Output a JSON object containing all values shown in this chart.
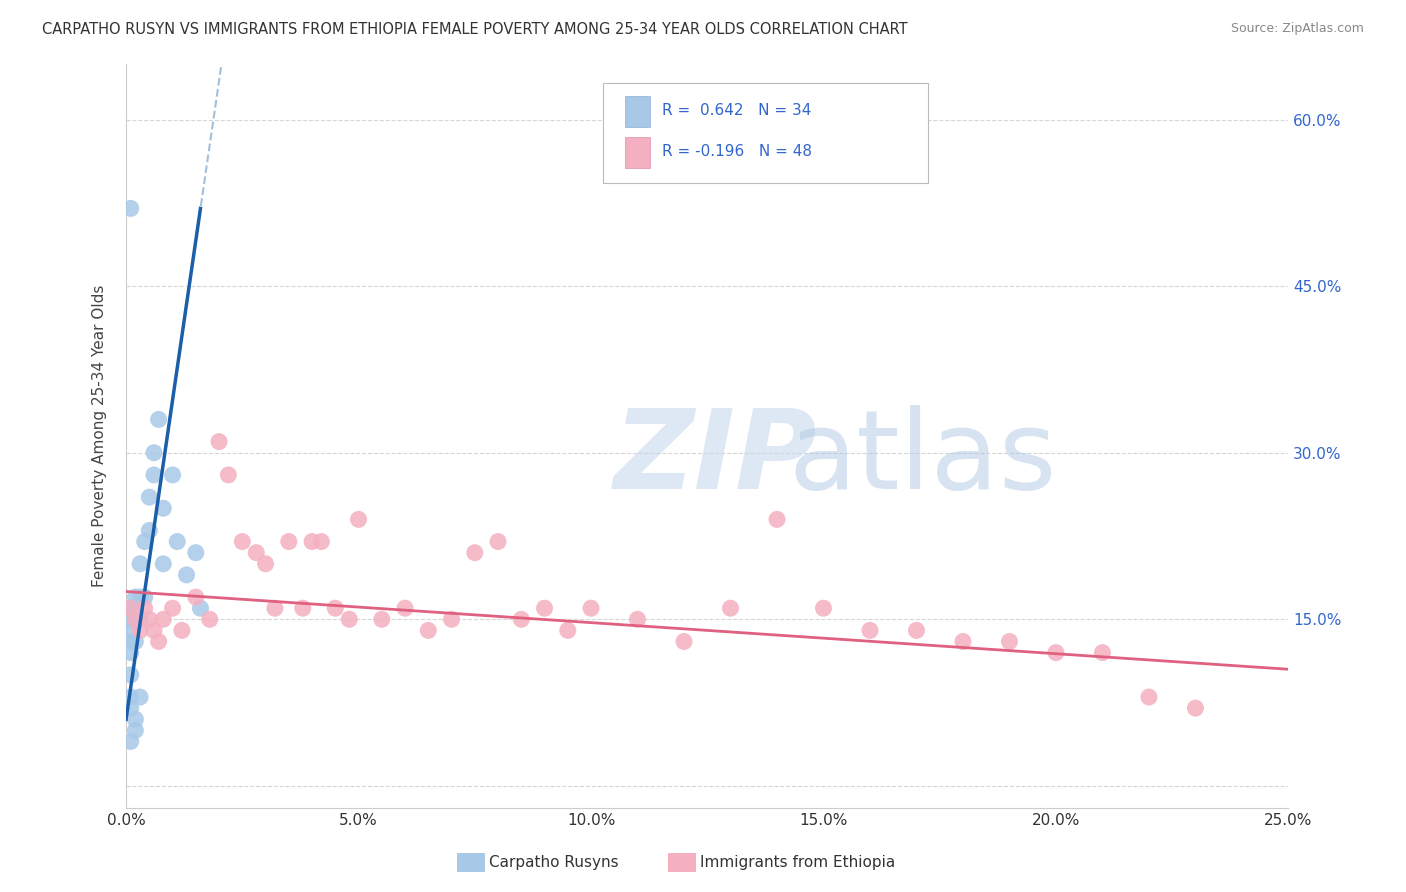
{
  "title": "CARPATHO RUSYN VS IMMIGRANTS FROM ETHIOPIA FEMALE POVERTY AMONG 25-34 YEAR OLDS CORRELATION CHART",
  "source": "Source: ZipAtlas.com",
  "ylabel": "Female Poverty Among 25-34 Year Olds",
  "xlim": [
    0.0,
    0.25
  ],
  "ylim": [
    -0.02,
    0.65
  ],
  "yticks_right": [
    0.0,
    0.15,
    0.3,
    0.45,
    0.6
  ],
  "ytick_labels_right": [
    "",
    "15.0%",
    "30.0%",
    "45.0%",
    "60.0%"
  ],
  "xtick_labels": [
    "0.0%",
    "",
    "5.0%",
    "",
    "10.0%",
    "",
    "15.0%",
    "",
    "20.0%",
    "",
    "25.0%"
  ],
  "xticks": [
    0.0,
    0.025,
    0.05,
    0.075,
    0.1,
    0.125,
    0.15,
    0.175,
    0.2,
    0.225,
    0.25
  ],
  "color_blue": "#a8c8e8",
  "color_pink": "#f4b0c0",
  "color_blue_line": "#1a5fa8",
  "color_pink_line": "#e06080",
  "color_blue_text": "#3366cc",
  "background_color": "#ffffff",
  "grid_color": "#cccccc",
  "blue_points_x": [
    0.001,
    0.001,
    0.001,
    0.001,
    0.001,
    0.001,
    0.001,
    0.001,
    0.002,
    0.002,
    0.002,
    0.002,
    0.002,
    0.003,
    0.003,
    0.003,
    0.004,
    0.004,
    0.005,
    0.005,
    0.006,
    0.006,
    0.007,
    0.008,
    0.008,
    0.01,
    0.011,
    0.013,
    0.015,
    0.016,
    0.001,
    0.003,
    0.002,
    0.001
  ],
  "blue_points_y": [
    0.16,
    0.14,
    0.13,
    0.15,
    0.12,
    0.1,
    0.08,
    0.07,
    0.17,
    0.16,
    0.15,
    0.13,
    0.05,
    0.2,
    0.17,
    0.15,
    0.22,
    0.17,
    0.26,
    0.23,
    0.28,
    0.3,
    0.33,
    0.25,
    0.2,
    0.28,
    0.22,
    0.19,
    0.21,
    0.16,
    0.04,
    0.08,
    0.06,
    0.52
  ],
  "pink_points_x": [
    0.001,
    0.002,
    0.003,
    0.004,
    0.005,
    0.006,
    0.007,
    0.008,
    0.01,
    0.012,
    0.015,
    0.018,
    0.02,
    0.022,
    0.025,
    0.028,
    0.03,
    0.032,
    0.035,
    0.038,
    0.04,
    0.042,
    0.045,
    0.048,
    0.05,
    0.055,
    0.06,
    0.065,
    0.07,
    0.075,
    0.08,
    0.085,
    0.09,
    0.095,
    0.1,
    0.11,
    0.12,
    0.13,
    0.14,
    0.15,
    0.16,
    0.17,
    0.18,
    0.19,
    0.2,
    0.21,
    0.22,
    0.23
  ],
  "pink_points_y": [
    0.16,
    0.15,
    0.14,
    0.16,
    0.15,
    0.14,
    0.13,
    0.15,
    0.16,
    0.14,
    0.17,
    0.15,
    0.31,
    0.28,
    0.22,
    0.21,
    0.2,
    0.16,
    0.22,
    0.16,
    0.22,
    0.22,
    0.16,
    0.15,
    0.24,
    0.15,
    0.16,
    0.14,
    0.15,
    0.21,
    0.22,
    0.15,
    0.16,
    0.14,
    0.16,
    0.15,
    0.13,
    0.16,
    0.24,
    0.16,
    0.14,
    0.14,
    0.13,
    0.13,
    0.12,
    0.12,
    0.08,
    0.07
  ],
  "blue_trendline_x0": 0.0,
  "blue_trendline_y0": 0.06,
  "blue_trendline_x1": 0.016,
  "blue_trendline_y1": 0.52,
  "blue_trendline_ext_x0": 0.013,
  "blue_trendline_ext_x1": 0.022,
  "pink_trendline_x0": 0.0,
  "pink_trendline_y0": 0.175,
  "pink_trendline_x1": 0.25,
  "pink_trendline_y1": 0.105
}
